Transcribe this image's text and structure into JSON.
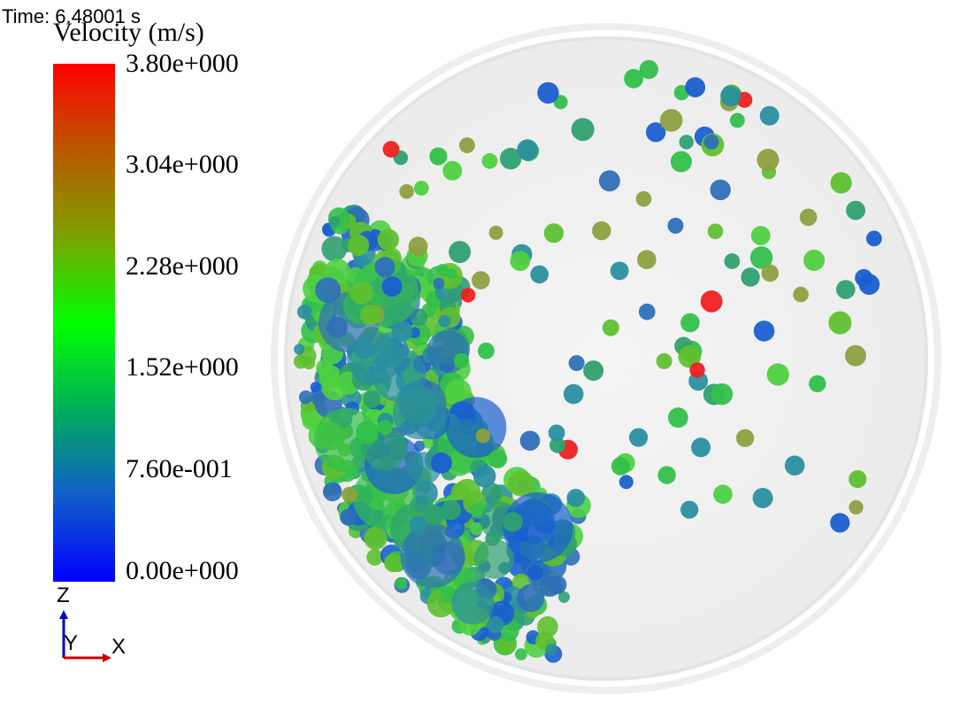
{
  "time_label": "Time: 6.48001 s",
  "legend": {
    "title": "Velocity (m/s)",
    "ticks": [
      "3.80e+000",
      "3.04e+000",
      "2.28e+000",
      "1.52e+000",
      "7.60e-001",
      "0.00e+000"
    ],
    "colors": [
      "#ff0000",
      "#b85a00",
      "#7ea000",
      "#00ff00",
      "#00ad5a",
      "#1160c8",
      "#0000ff"
    ]
  },
  "axes": {
    "z": "Z",
    "y": "Y",
    "x": "X",
    "z_color": "#0000cc",
    "x_color": "#cc0000"
  },
  "scene": {
    "container": "drum",
    "container_color": "#f2f2f2",
    "particle_colors": [
      "#1a5fd0",
      "#2f6fb8",
      "#2b8fa0",
      "#2fa070",
      "#33c04a",
      "#4fd040",
      "#5fc030",
      "#8da040",
      "#c07030",
      "#ee2020"
    ]
  }
}
